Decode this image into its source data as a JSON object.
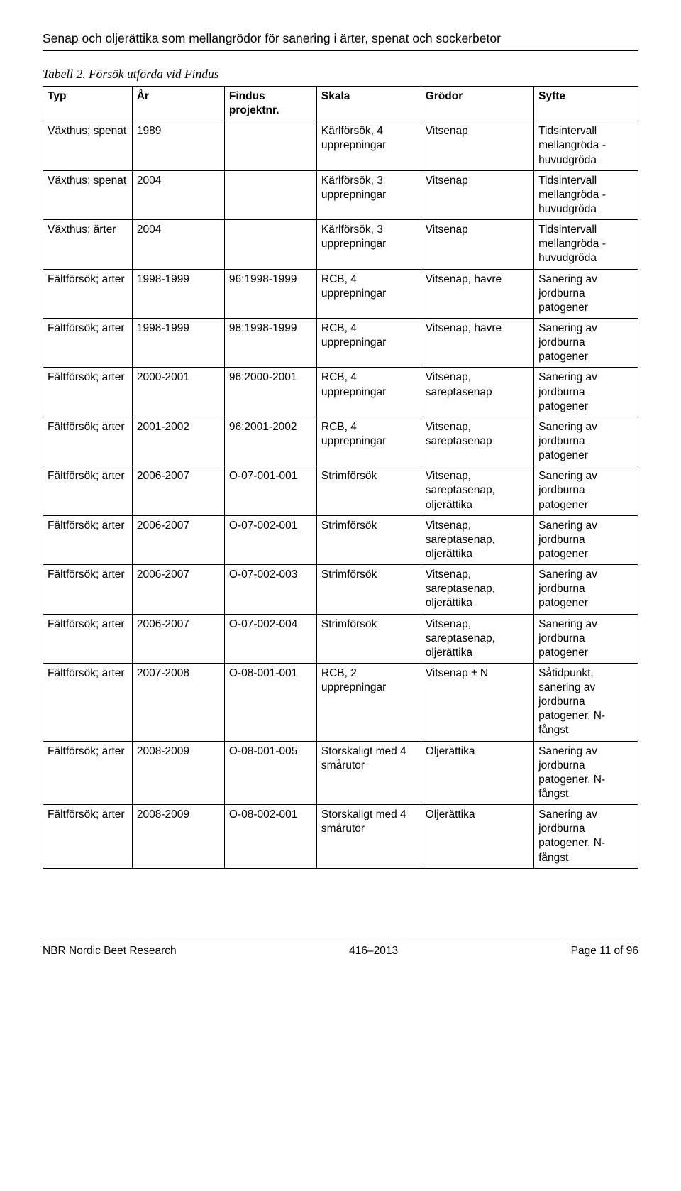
{
  "header": "Senap och oljerättika som mellangrödor för sanering i ärter, spenat och sockerbetor",
  "caption": "Tabell 2. Försök utförda vid Findus",
  "columns": [
    "Typ",
    "År",
    "Findus projektnr.",
    "Skala",
    "Grödor",
    "Syfte"
  ],
  "rows": [
    [
      "Växthus; spenat",
      "1989",
      "",
      "Kärlförsök, 4 upprepningar",
      "Vitsenap",
      "Tidsintervall mellangröda - huvudgröda"
    ],
    [
      "Växthus; spenat",
      "2004",
      "",
      "Kärlförsök, 3 upprepningar",
      "Vitsenap",
      "Tidsintervall mellangröda - huvudgröda"
    ],
    [
      "Växthus; ärter",
      "2004",
      "",
      "Kärlförsök, 3 upprepningar",
      "Vitsenap",
      "Tidsintervall mellangröda - huvudgröda"
    ],
    [
      "Fältförsök; ärter",
      "1998-1999",
      "96:1998-1999",
      "RCB, 4 upprepningar",
      "Vitsenap, havre",
      "Sanering av jordburna patogener"
    ],
    [
      "Fältförsök; ärter",
      "1998-1999",
      "98:1998-1999",
      "RCB, 4 upprepningar",
      "Vitsenap, havre",
      "Sanering av jordburna patogener"
    ],
    [
      "Fältförsök; ärter",
      "2000-2001",
      "96:2000-2001",
      "RCB, 4 upprepningar",
      "Vitsenap, sareptasenap",
      "Sanering av jordburna patogener"
    ],
    [
      "Fältförsök; ärter",
      "2001-2002",
      "96:2001-2002",
      "RCB, 4 upprepningar",
      "Vitsenap, sareptasenap",
      "Sanering av jordburna patogener"
    ],
    [
      "Fältförsök; ärter",
      "2006-2007",
      "O-07-001-001",
      "Strimförsök",
      "Vitsenap, sareptasenap, oljerättika",
      "Sanering av jordburna patogener"
    ],
    [
      "Fältförsök; ärter",
      "2006-2007",
      "O-07-002-001",
      "Strimförsök",
      "Vitsenap, sareptasenap, oljerättika",
      "Sanering av jordburna patogener"
    ],
    [
      "Fältförsök; ärter",
      "2006-2007",
      "O-07-002-003",
      "Strimförsök",
      "Vitsenap, sareptasenap, oljerättika",
      "Sanering av jordburna patogener"
    ],
    [
      "Fältförsök; ärter",
      "2006-2007",
      "O-07-002-004",
      "Strimförsök",
      "Vitsenap, sareptasenap, oljerättika",
      "Sanering av jordburna patogener"
    ],
    [
      "Fältförsök; ärter",
      "2007-2008",
      "O-08-001-001",
      "RCB, 2 upprepningar",
      "Vitsenap ± N",
      "Såtidpunkt, sanering av jordburna patogener, N-fångst"
    ],
    [
      "Fältförsök; ärter",
      "2008-2009",
      "O-08-001-005",
      "Storskaligt med 4 smårutor",
      "Oljerättika",
      "Sanering av jordburna patogener, N-fångst"
    ],
    [
      "Fältförsök; ärter",
      "2008-2009",
      "O-08-002-001",
      "Storskaligt med 4 smårutor",
      "Oljerättika",
      "Sanering av jordburna patogener, N-fångst"
    ]
  ],
  "footer": {
    "left": "NBR Nordic Beet Research",
    "center": "416–2013",
    "right": "Page 11 of 96"
  }
}
